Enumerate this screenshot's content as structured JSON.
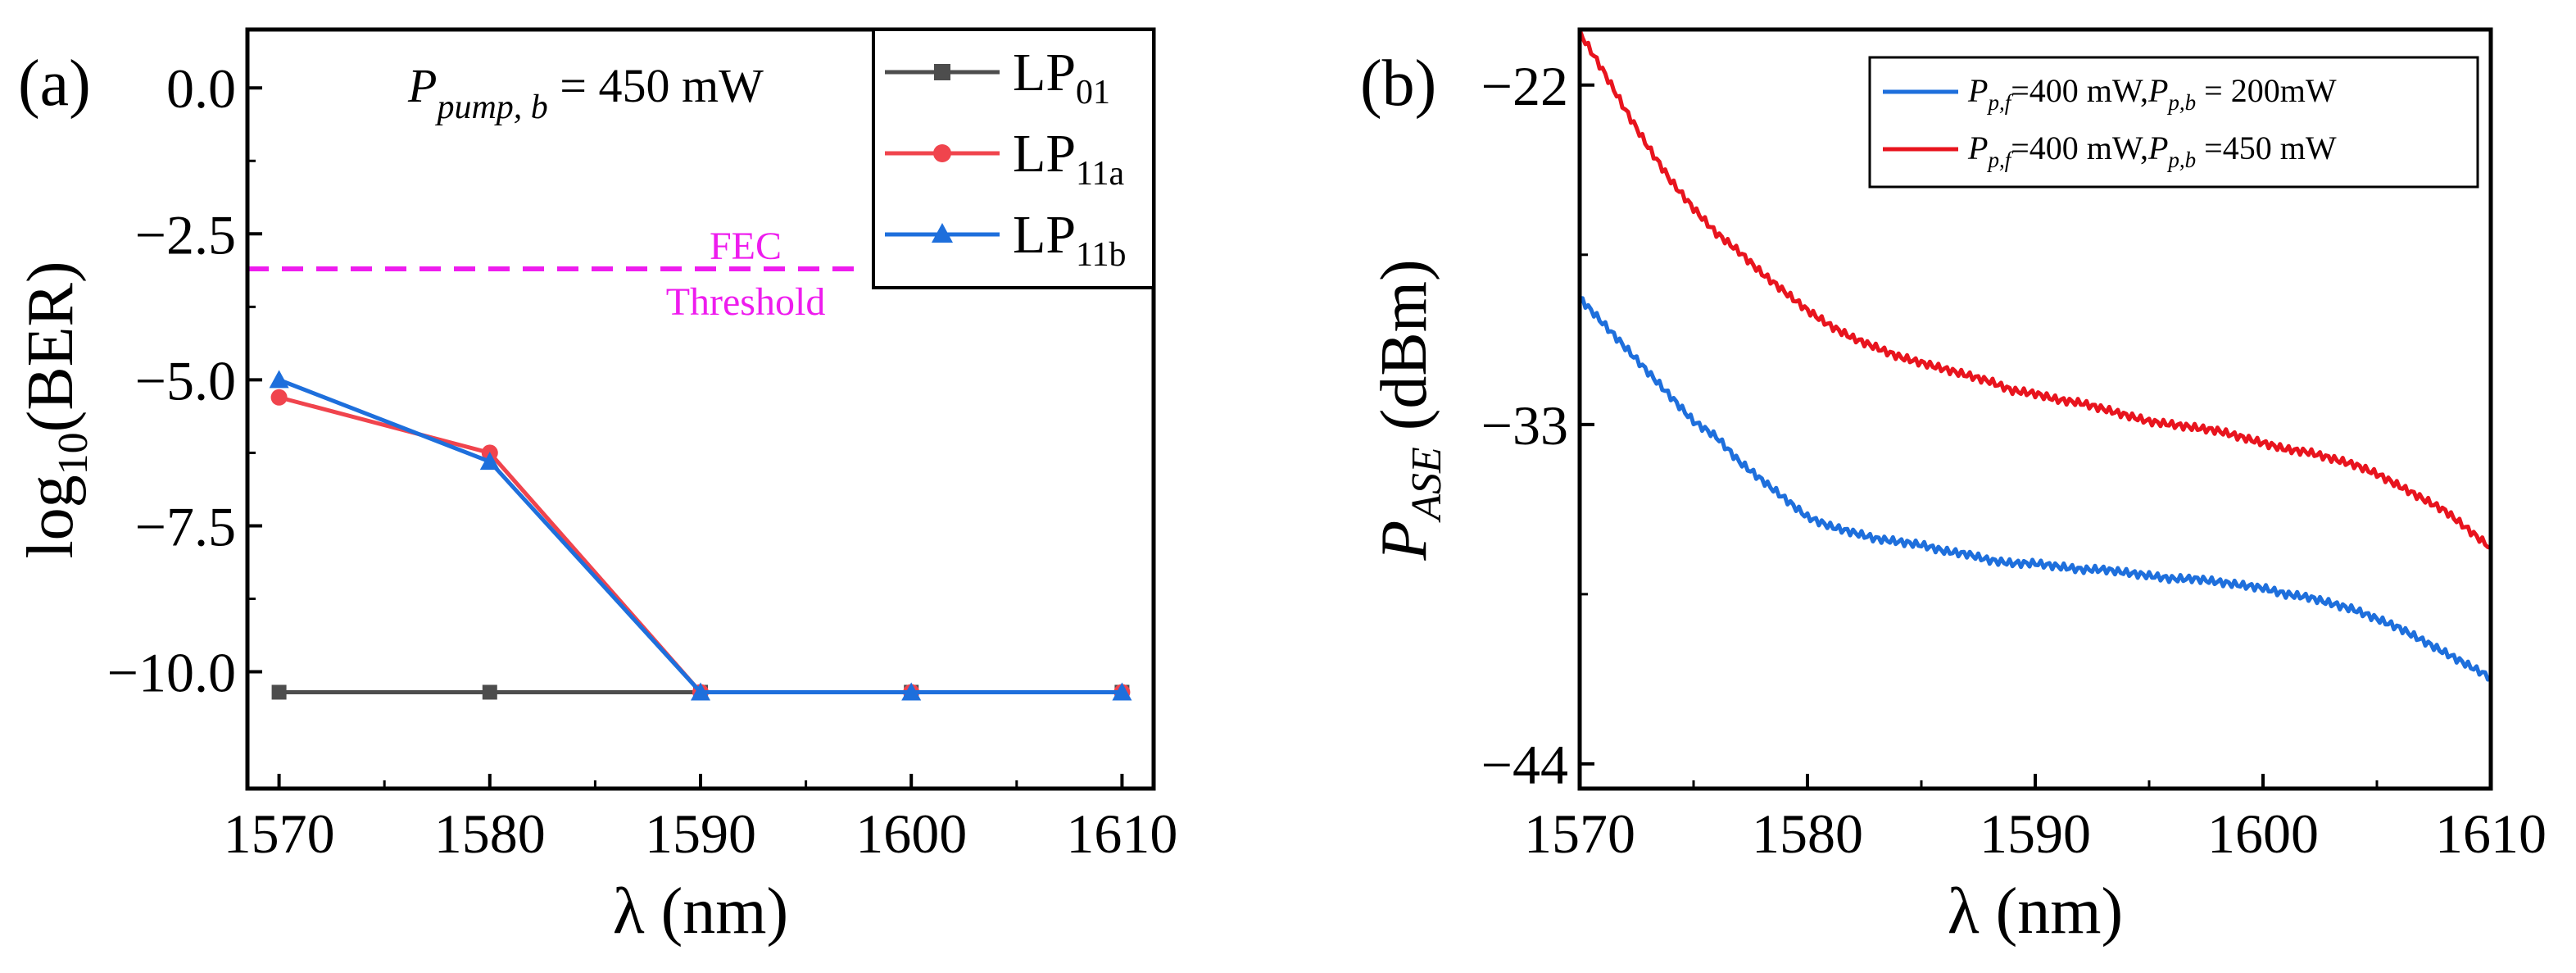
{
  "colors": {
    "lp01": "#4d4d4d",
    "lp11a": "#f0444d",
    "lp11b": "#1e6fdc",
    "fec": "#ee1cee",
    "ase_200": "#1e6fdc",
    "ase_450": "#e8141e"
  },
  "chart_data": [
    {
      "type": "line",
      "panel_label": "(a)",
      "xlabel": "λ (nm)",
      "ylabel_main": "log",
      "ylabel_sub": "10",
      "ylabel_tail": "(BER)",
      "xlim": [
        1568.5,
        1611.5
      ],
      "ylim": [
        -12.0,
        1.0
      ],
      "x_ticks": [
        1570,
        1580,
        1590,
        1600,
        1610
      ],
      "x_tick_labels": [
        "1570",
        "1580",
        "1590",
        "1600",
        "1610"
      ],
      "y_ticks": [
        0.0,
        -2.5,
        -5.0,
        -7.5,
        -10.0
      ],
      "y_tick_labels": [
        "0.0",
        "−2.5",
        "−5.0",
        "−7.5",
        "−10.0"
      ],
      "annotation": {
        "prefix": "P",
        "subscript": "pump, b",
        "value": " = 450 mW"
      },
      "threshold": {
        "y": -3.1,
        "label_line1": "FEC",
        "label_line2": "Threshold"
      },
      "x": [
        1570,
        1580,
        1590,
        1600,
        1610
      ],
      "series": [
        {
          "name": "LP01",
          "label_main": "LP",
          "label_sub": "01",
          "marker": "square",
          "color_key": "lp01",
          "values": [
            -10.35,
            -10.35,
            -10.35,
            -10.35,
            -10.35
          ]
        },
        {
          "name": "LP11a",
          "label_main": "LP",
          "label_sub": "11a",
          "marker": "circle",
          "color_key": "lp11a",
          "values": [
            -5.3,
            -6.25,
            -10.35,
            -10.35,
            -10.35
          ]
        },
        {
          "name": "LP11b",
          "label_main": "LP",
          "label_sub": "11b",
          "marker": "triangle",
          "color_key": "lp11b",
          "values": [
            -5.0,
            -6.4,
            -10.35,
            -10.35,
            -10.35
          ]
        }
      ]
    },
    {
      "type": "line",
      "panel_label": "(b)",
      "xlabel": "λ (nm)",
      "ylabel_main": "P",
      "ylabel_sub": "ASE",
      "ylabel_tail": " (dBm)",
      "xlim": [
        1570,
        1610
      ],
      "ylim": [
        -44.8,
        -20.2
      ],
      "x_ticks": [
        1570,
        1580,
        1590,
        1600,
        1610
      ],
      "x_tick_labels": [
        "1570",
        "1580",
        "1590",
        "1600",
        "1610"
      ],
      "y_ticks": [
        -22,
        -33,
        -44
      ],
      "y_tick_labels": [
        "−22",
        "−33",
        "−44"
      ],
      "x": [
        1570,
        1571,
        1572,
        1573,
        1574,
        1575,
        1576,
        1577,
        1578,
        1579,
        1580,
        1581,
        1582,
        1583,
        1584,
        1585,
        1586,
        1587,
        1588,
        1589,
        1590,
        1591,
        1592,
        1593,
        1594,
        1595,
        1596,
        1597,
        1598,
        1599,
        1600,
        1601,
        1602,
        1603,
        1604,
        1605,
        1606,
        1607,
        1608,
        1609,
        1610
      ],
      "series": [
        {
          "name": "Pp,f=400 mW,Pp,b = 200mW",
          "label_parts": [
            "P",
            "p,f",
            "=400 mW,",
            "P",
            "p,b",
            " = 200mW"
          ],
          "color_key": "ase_200",
          "values": [
            -28.9,
            -29.7,
            -30.5,
            -31.3,
            -32.1,
            -32.9,
            -33.4,
            -34.2,
            -34.8,
            -35.4,
            -36.0,
            -36.3,
            -36.5,
            -36.7,
            -36.8,
            -36.9,
            -37.1,
            -37.2,
            -37.4,
            -37.5,
            -37.5,
            -37.6,
            -37.7,
            -37.7,
            -37.8,
            -37.9,
            -38.0,
            -38.0,
            -38.1,
            -38.2,
            -38.3,
            -38.5,
            -38.6,
            -38.8,
            -39.0,
            -39.3,
            -39.6,
            -40.0,
            -40.4,
            -40.8,
            -41.2
          ]
        },
        {
          "name": "Pp,f=400 mW,Pp,b =450 mW",
          "label_parts": [
            "P",
            "p,f",
            "=400 mW,",
            "P",
            "p,b",
            " =450 mW"
          ],
          "color_key": "ase_450",
          "values": [
            -20.3,
            -21.5,
            -22.8,
            -24.0,
            -25.1,
            -26.0,
            -26.8,
            -27.4,
            -28.1,
            -28.7,
            -29.3,
            -29.8,
            -30.2,
            -30.5,
            -30.8,
            -31.0,
            -31.2,
            -31.4,
            -31.6,
            -31.9,
            -32.0,
            -32.2,
            -32.3,
            -32.5,
            -32.7,
            -32.9,
            -33.0,
            -33.1,
            -33.2,
            -33.4,
            -33.6,
            -33.8,
            -33.9,
            -34.1,
            -34.3,
            -34.6,
            -35.0,
            -35.4,
            -35.8,
            -36.4,
            -37.0
          ]
        }
      ]
    }
  ]
}
